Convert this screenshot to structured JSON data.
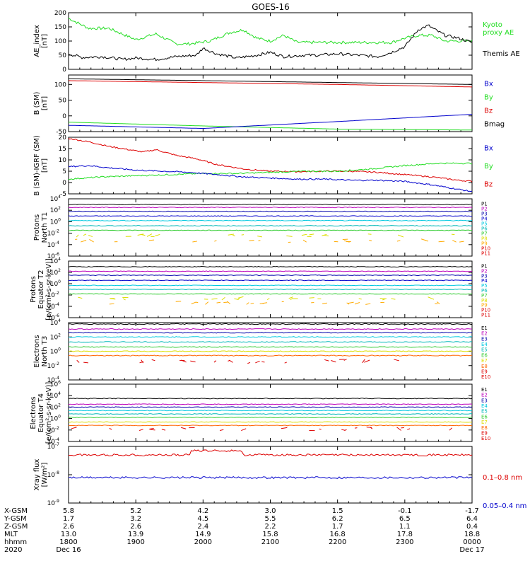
{
  "title": "GOES-16",
  "colors": {
    "black": "#000000",
    "red": "#dd0000",
    "green": "#22dd22",
    "blue": "#0000cc",
    "magenta": "#bb00bb",
    "navy": "#0000aa",
    "cyan": "#00c8e0",
    "teal": "#00b8b8",
    "lightgreen": "#33cc33",
    "yellow": "#dddd00",
    "orange": "#ffaa00",
    "darkorange": "#ff6600"
  },
  "chart_data": [
    {
      "id": "ae",
      "type": "line",
      "ylabel": [
        "AE_index",
        "[nT]"
      ],
      "ylim": [
        0,
        200
      ],
      "yticks": [
        "0",
        "50",
        "100",
        "150",
        "200"
      ],
      "legend": [
        {
          "label": "Kyoto",
          "color": "green"
        },
        {
          "label": "proxy AE",
          "color": "green"
        },
        {
          "label": "Themis AE",
          "color": "black"
        }
      ],
      "series": [
        {
          "name": "Kyoto proxy AE",
          "color": "green",
          "x": [
            0,
            0.3,
            0.6,
            1.0,
            1.3,
            1.6,
            1.8,
            2.1,
            2.4,
            2.6,
            2.8,
            3.0,
            3.2,
            3.4,
            3.6,
            3.8,
            4.0,
            4.2,
            4.4,
            4.6,
            4.8,
            5.0,
            5.2,
            5.4,
            5.6,
            6.0
          ],
          "values": [
            180,
            145,
            145,
            105,
            125,
            90,
            90,
            100,
            130,
            140,
            110,
            100,
            120,
            95,
            95,
            95,
            95,
            95,
            95,
            95,
            95,
            110,
            120,
            120,
            100,
            100
          ]
        },
        {
          "name": "Themis AE",
          "color": "black",
          "x": [
            0,
            0.2,
            0.5,
            0.8,
            1.0,
            1.3,
            1.6,
            1.9,
            2.0,
            2.2,
            2.5,
            2.8,
            3.0,
            3.2,
            3.5,
            3.7,
            4.0,
            4.3,
            4.6,
            4.8,
            5.0,
            5.2,
            5.35,
            5.45,
            5.6,
            5.8,
            6.0
          ],
          "values": [
            55,
            42,
            45,
            35,
            40,
            35,
            45,
            50,
            75,
            55,
            40,
            50,
            60,
            45,
            50,
            50,
            55,
            50,
            45,
            60,
            80,
            140,
            155,
            140,
            120,
            110,
            95
          ]
        }
      ]
    },
    {
      "id": "bsm",
      "type": "line",
      "ylabel": [
        "B (SM)",
        "[nT]"
      ],
      "ylim": [
        -50,
        130
      ],
      "yticks": [
        "-50",
        "0",
        "50",
        "100"
      ],
      "legend": [
        {
          "label": "Bx",
          "color": "blue"
        },
        {
          "label": "By",
          "color": "green"
        },
        {
          "label": "Bz",
          "color": "red"
        },
        {
          "label": "Bmag",
          "color": "black"
        }
      ],
      "series": [
        {
          "name": "Bmag",
          "color": "black",
          "x": [
            0,
            2,
            4,
            6
          ],
          "values": [
            118,
            112,
            106,
            100
          ]
        },
        {
          "name": "Bz",
          "color": "red",
          "x": [
            0,
            2,
            4,
            6
          ],
          "values": [
            112,
            106,
            100,
            92
          ]
        },
        {
          "name": "By",
          "color": "green",
          "x": [
            0,
            2,
            4,
            6
          ],
          "values": [
            -20,
            -32,
            -42,
            -45
          ]
        },
        {
          "name": "Bx",
          "color": "blue",
          "x": [
            0,
            2,
            4,
            6
          ],
          "values": [
            -30,
            -40,
            -18,
            5
          ]
        }
      ]
    },
    {
      "id": "bdiff",
      "type": "line",
      "ylabel": [
        "B (SM)-IGRF (SM)",
        "[nT]"
      ],
      "ylim": [
        -5,
        20
      ],
      "yticks": [
        "-5",
        "0",
        "5",
        "10",
        "15",
        "20"
      ],
      "legend": [
        {
          "label": "Bx",
          "color": "blue"
        },
        {
          "label": "By",
          "color": "green"
        },
        {
          "label": "Bz",
          "color": "red"
        }
      ],
      "series": [
        {
          "name": "Bz",
          "color": "red",
          "x": [
            0,
            0.3,
            0.6,
            0.9,
            1.1,
            1.3,
            1.6,
            1.9,
            2.2,
            2.6,
            3.0,
            3.4,
            3.8,
            4.2,
            4.6,
            5.0,
            5.4,
            5.8,
            6.0
          ],
          "values": [
            19.5,
            18,
            16,
            14.5,
            13.5,
            14.5,
            12,
            10.5,
            8,
            6,
            5,
            4.8,
            5,
            5,
            4.5,
            3.5,
            2.5,
            1,
            0.5
          ]
        },
        {
          "name": "By",
          "color": "green",
          "x": [
            0,
            0.5,
            1.0,
            1.5,
            2.0,
            2.5,
            3.0,
            3.5,
            4.0,
            4.5,
            5.0,
            5.5,
            6.0
          ],
          "values": [
            1.5,
            2.5,
            3,
            3.5,
            4,
            4,
            4.5,
            5,
            5,
            6,
            7.5,
            8.5,
            8.5
          ]
        },
        {
          "name": "Bx",
          "color": "blue",
          "x": [
            0,
            0.3,
            0.6,
            1.0,
            1.4,
            1.8,
            2.2,
            2.6,
            3.0,
            3.4,
            3.8,
            4.2,
            4.6,
            5.0,
            5.4,
            5.8,
            6.0
          ],
          "values": [
            7,
            7.5,
            6.5,
            5.5,
            5,
            4.5,
            3.5,
            2.5,
            2,
            1.5,
            1.5,
            1,
            1,
            0.5,
            -1,
            -3,
            -4
          ]
        }
      ]
    },
    {
      "id": "pn",
      "type": "line",
      "log": true,
      "ylabel": [
        "Protons",
        "North T1"
      ],
      "ylim": [
        -6,
        4
      ],
      "yticks": [
        "10^4",
        "10^2",
        "10^0",
        "10^-2",
        "10^-4",
        "10^-6"
      ],
      "legend": [
        {
          "label": "P1",
          "color": "black"
        },
        {
          "label": "P2",
          "color": "magenta"
        },
        {
          "label": "P3",
          "color": "navy"
        },
        {
          "label": "P4",
          "color": "blue"
        },
        {
          "label": "P5",
          "color": "cyan"
        },
        {
          "label": "P6",
          "color": "teal"
        },
        {
          "label": "P7",
          "color": "lightgreen"
        },
        {
          "label": "P8",
          "color": "yellow"
        },
        {
          "label": "P9",
          "color": "orange"
        },
        {
          "label": "P10",
          "color": "red"
        },
        {
          "label": "P11",
          "color": "red"
        }
      ],
      "series": [
        {
          "name": "P1",
          "color": "black",
          "level": 3.0
        },
        {
          "name": "P2",
          "color": "magenta",
          "level": 2.5
        },
        {
          "name": "P3",
          "color": "navy",
          "level": 1.8
        },
        {
          "name": "P4",
          "color": "blue",
          "level": 1.0
        },
        {
          "name": "P5",
          "color": "cyan",
          "level": 0.2
        },
        {
          "name": "P6",
          "color": "teal",
          "level": -0.7
        },
        {
          "name": "P7",
          "color": "lightgreen",
          "level": -1.5
        },
        {
          "name": "P8",
          "color": "yellow",
          "level": -2.4,
          "sparse": true
        },
        {
          "name": "P9",
          "color": "orange",
          "level": -3.3,
          "sparse": true
        }
      ]
    },
    {
      "id": "pe",
      "type": "line",
      "log": true,
      "ylabel": [
        "Protons",
        "Equator T2",
        "[p/(cm²-s-sr-keV)]"
      ],
      "ylim": [
        -6,
        4
      ],
      "yticks": [
        "10^4",
        "10^2",
        "10^0",
        "10^-2",
        "10^-4",
        "10^-6"
      ],
      "legend": [
        {
          "label": "P1",
          "color": "black"
        },
        {
          "label": "P2",
          "color": "magenta"
        },
        {
          "label": "P3",
          "color": "navy"
        },
        {
          "label": "P4",
          "color": "blue"
        },
        {
          "label": "P5",
          "color": "cyan"
        },
        {
          "label": "P6",
          "color": "teal"
        },
        {
          "label": "P7",
          "color": "lightgreen"
        },
        {
          "label": "P8",
          "color": "yellow"
        },
        {
          "label": "P9",
          "color": "orange"
        },
        {
          "label": "P10",
          "color": "red"
        },
        {
          "label": "P11",
          "color": "red"
        }
      ],
      "series": [
        {
          "name": "P1",
          "color": "black",
          "level": 3.0
        },
        {
          "name": "P2",
          "color": "magenta",
          "level": 2.2
        },
        {
          "name": "P3",
          "color": "navy",
          "level": 1.5
        },
        {
          "name": "P4",
          "color": "blue",
          "level": 0.6
        },
        {
          "name": "P5",
          "color": "cyan",
          "level": -0.3
        },
        {
          "name": "P6",
          "color": "teal",
          "level": -1.0
        },
        {
          "name": "P7",
          "color": "lightgreen",
          "level": -1.8
        },
        {
          "name": "P8",
          "color": "yellow",
          "level": -2.6,
          "sparse": true
        },
        {
          "name": "P9",
          "color": "orange",
          "level": -3.4,
          "sparse": true
        }
      ]
    },
    {
      "id": "en",
      "type": "line",
      "log": true,
      "ylabel": [
        "Electrons",
        "North T3"
      ],
      "ylim": [
        -4,
        4
      ],
      "yticks": [
        "10^4",
        "10^2",
        "10^0",
        "10^-2",
        "10^-4"
      ],
      "legend": [
        {
          "label": "E1",
          "color": "black"
        },
        {
          "label": "E2",
          "color": "magenta"
        },
        {
          "label": "E3",
          "color": "navy"
        },
        {
          "label": "E4",
          "color": "cyan"
        },
        {
          "label": "E5",
          "color": "teal"
        },
        {
          "label": "E6",
          "color": "lightgreen"
        },
        {
          "label": "E7",
          "color": "yellow"
        },
        {
          "label": "E8",
          "color": "darkorange"
        },
        {
          "label": "E9",
          "color": "red"
        },
        {
          "label": "E10",
          "color": "red"
        }
      ],
      "series": [
        {
          "name": "E1",
          "color": "black",
          "level": 3.8
        },
        {
          "name": "E2",
          "color": "magenta",
          "level": 3.1
        },
        {
          "name": "E3",
          "color": "navy",
          "level": 2.6
        },
        {
          "name": "E4",
          "color": "cyan",
          "level": 2.0
        },
        {
          "name": "E5",
          "color": "teal",
          "level": 1.3
        },
        {
          "name": "E6",
          "color": "lightgreen",
          "level": 0.6
        },
        {
          "name": "E7",
          "color": "yellow",
          "level": 0.0
        },
        {
          "name": "E8",
          "color": "darkorange",
          "level": -0.6
        },
        {
          "name": "E9",
          "color": "red",
          "level": -1.4,
          "sparse": true
        }
      ]
    },
    {
      "id": "ee",
      "type": "line",
      "log": true,
      "ylabel": [
        "Electrons",
        "Equator T4",
        "[e/(cm²-s-sr-keV)]"
      ],
      "ylim": [
        -4,
        6
      ],
      "yticks": [
        "10^6",
        "10^4",
        "10^2",
        "10^0",
        "10^-2",
        "10^-4"
      ],
      "legend": [
        {
          "label": "E1",
          "color": "black"
        },
        {
          "label": "E2",
          "color": "magenta"
        },
        {
          "label": "E3",
          "color": "navy"
        },
        {
          "label": "E4",
          "color": "cyan"
        },
        {
          "label": "E5",
          "color": "teal"
        },
        {
          "label": "E6",
          "color": "lightgreen"
        },
        {
          "label": "E7",
          "color": "yellow"
        },
        {
          "label": "E8",
          "color": "darkorange"
        },
        {
          "label": "E9",
          "color": "red"
        },
        {
          "label": "E10",
          "color": "red"
        }
      ],
      "series": [
        {
          "name": "E1",
          "color": "black",
          "level": 3.5
        },
        {
          "name": "E2",
          "color": "magenta",
          "level": 2.5
        },
        {
          "name": "E3",
          "color": "navy",
          "level": 2.0
        },
        {
          "name": "E4",
          "color": "cyan",
          "level": 1.4
        },
        {
          "name": "E5",
          "color": "teal",
          "level": 0.8
        },
        {
          "name": "E6",
          "color": "lightgreen",
          "level": 0.2
        },
        {
          "name": "E7",
          "color": "yellow",
          "level": -0.6
        },
        {
          "name": "E8",
          "color": "darkorange",
          "level": -1.2
        },
        {
          "name": "E9",
          "color": "red",
          "level": -1.8,
          "sparse": true
        }
      ]
    },
    {
      "id": "xray",
      "type": "line",
      "log": true,
      "ylabel": [
        "Xray flux",
        "[W/m²]"
      ],
      "ylim": [
        -9,
        -7
      ],
      "yticks": [
        "10^-7",
        "10^-8",
        "10^-9"
      ],
      "legend": [
        {
          "label": "0.1–0.8 nm",
          "color": "red"
        },
        {
          "label": "0.05–0.4 nm",
          "color": "blue"
        }
      ],
      "series": [
        {
          "name": "0.1-0.8 nm",
          "color": "red",
          "level": -7.3
        },
        {
          "name": "0.05-0.4 nm",
          "color": "blue",
          "level": -8.1
        }
      ]
    }
  ],
  "xaxis": {
    "tick_hours": [
      0,
      1,
      2,
      3,
      4,
      5,
      6
    ],
    "rows": [
      {
        "label": "X-GSM",
        "values": [
          "5.8",
          "5.2",
          "4.2",
          "3.0",
          "1.5",
          "-0.1",
          "-1.7"
        ]
      },
      {
        "label": "Y-GSM",
        "values": [
          "1.7",
          "3.2",
          "4.5",
          "5.5",
          "6.2",
          "6.5",
          "6.4"
        ]
      },
      {
        "label": "Z-GSM",
        "values": [
          "2.6",
          "2.6",
          "2.4",
          "2.2",
          "1.7",
          "1.1",
          "0.4"
        ]
      },
      {
        "label": "MLT",
        "values": [
          "13.0",
          "13.9",
          "14.9",
          "15.8",
          "16.8",
          "17.8",
          "18.8"
        ]
      },
      {
        "label": "hhmm",
        "values": [
          "1800",
          "1900",
          "2000",
          "2100",
          "2200",
          "2300",
          "0000"
        ]
      },
      {
        "label": "2020",
        "values": [
          "Dec 16",
          "",
          "",
          "",
          "",
          "",
          "Dec 17"
        ]
      }
    ]
  }
}
